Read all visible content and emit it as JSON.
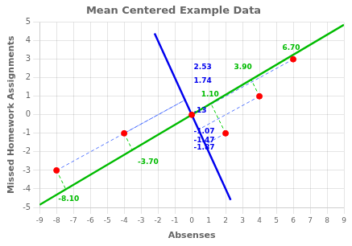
{
  "chart_data": {
    "type": "scatter",
    "title": "Mean Centered Example Data",
    "x_label": "Absenses",
    "y_label": "Missed Homework Assignments",
    "xlim": [
      -9,
      9
    ],
    "ylim": [
      -5,
      5
    ],
    "xticks": [
      -9,
      -8,
      -7,
      -6,
      -5,
      -4,
      -3,
      -2,
      -1,
      0,
      1,
      2,
      3,
      4,
      5,
      6,
      7,
      8,
      9
    ],
    "yticks": [
      -5,
      -4,
      -3,
      -2,
      -1,
      0,
      1,
      2,
      3,
      4,
      5
    ],
    "grid": true,
    "series": [
      {
        "type": "scatter",
        "color": "#ff0000",
        "x": [
          -8,
          -4,
          0,
          2,
          4,
          6
        ],
        "values": [
          -3,
          -1,
          0,
          -1,
          1,
          3
        ]
      },
      {
        "type": "line",
        "color": "#00bb00",
        "line_style": "solid",
        "x": [
          -9.0,
          9.0
        ],
        "values": [
          -4.86,
          4.86
        ]
      },
      {
        "type": "line",
        "color": "#0000ee",
        "line_style": "solid",
        "x": [
          -2.2,
          2.3
        ],
        "values": [
          4.4,
          -4.6
        ]
      },
      {
        "type": "line",
        "color": "#00cc00",
        "line_style": "dashed",
        "x": [
          -8,
          -7.4481
        ],
        "values": [
          -3,
          -4.022
        ]
      },
      {
        "type": "line",
        "color": "#5577ff",
        "line_style": "dashed",
        "x": [
          -8,
          -0.4
        ],
        "values": [
          -3,
          0.8
        ]
      },
      {
        "type": "line",
        "color": "#00cc00",
        "line_style": "dashed",
        "x": [
          -4,
          -3.515
        ],
        "values": [
          -1,
          -1.8981
        ]
      },
      {
        "type": "line",
        "color": "#5577ff",
        "line_style": "dashed",
        "x": [
          -4,
          -0.4
        ],
        "values": [
          -1,
          0.8
        ]
      },
      {
        "type": "line",
        "color": "#00cc00",
        "line_style": "dashed",
        "x": [
          0,
          0
        ],
        "values": [
          0,
          0
        ]
      },
      {
        "type": "line",
        "color": "#5577ff",
        "line_style": "dashed",
        "x": [
          0,
          0
        ],
        "values": [
          0,
          0
        ]
      },
      {
        "type": "line",
        "color": "#00cc00",
        "line_style": "dashed",
        "x": [
          2,
          1.1304
        ],
        "values": [
          -1,
          0.6104
        ]
      },
      {
        "type": "line",
        "color": "#5577ff",
        "line_style": "dashed",
        "x": [
          2,
          0.8
        ],
        "values": [
          -1,
          -1.6
        ]
      },
      {
        "type": "line",
        "color": "#00cc00",
        "line_style": "dashed",
        "x": [
          4,
          3.515
        ],
        "values": [
          1,
          1.8981
        ]
      },
      {
        "type": "line",
        "color": "#5577ff",
        "line_style": "dashed",
        "x": [
          4,
          0.4
        ],
        "values": [
          1,
          -0.8
        ]
      },
      {
        "type": "line",
        "color": "#00cc00",
        "line_style": "dashed",
        "x": [
          6,
          5.8997
        ],
        "values": [
          3,
          3.1858
        ]
      },
      {
        "type": "line",
        "color": "#5577ff",
        "line_style": "dashed",
        "x": [
          6,
          0
        ],
        "values": [
          3,
          0
        ]
      }
    ],
    "annotations": [
      {
        "text": "-8.10",
        "x": -7.9,
        "y": -4.55,
        "color": "#00bb00"
      },
      {
        "text": "-3.70",
        "x": -3.2,
        "y": -2.55,
        "color": "#00bb00"
      },
      {
        "text": "1.10",
        "x": 0.55,
        "y": 1.1,
        "color": "#00bb00"
      },
      {
        "text": "3.90",
        "x": 2.5,
        "y": 2.55,
        "color": "#00bb00"
      },
      {
        "text": "6.70",
        "x": 5.35,
        "y": 3.6,
        "color": "#00bb00"
      },
      {
        "text": "2.53",
        "x": 0.12,
        "y": 2.55,
        "color": "#0000ee"
      },
      {
        "text": "1.74",
        "x": 0.12,
        "y": 1.85,
        "color": "#0000ee"
      },
      {
        "text": ".13",
        "x": 0.12,
        "y": 0.22,
        "color": "#0000ee"
      },
      {
        "text": "-1.07",
        "x": 0.12,
        "y": -0.92,
        "color": "#0000ee"
      },
      {
        "text": "-1.47",
        "x": 0.12,
        "y": -1.38,
        "color": "#0000ee"
      },
      {
        "text": "-1.87",
        "x": 0.12,
        "y": -1.78,
        "color": "#0000ee"
      }
    ]
  }
}
